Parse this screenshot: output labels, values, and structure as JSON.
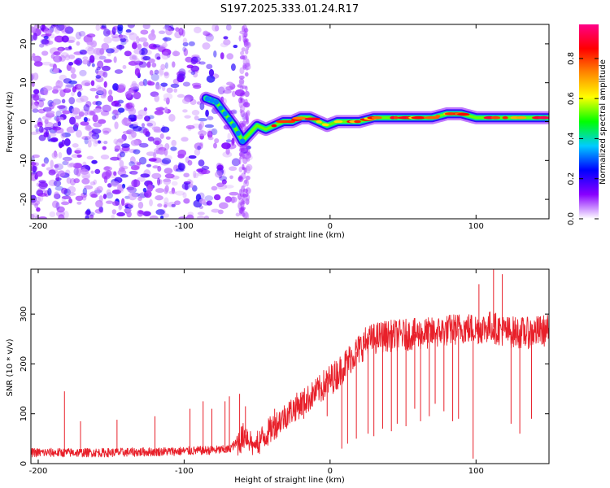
{
  "figure_title": "S197.2025.333.01.24.R17",
  "chart_data": [
    {
      "type": "heatmap",
      "title": "",
      "xlabel": "Height of straight line (km)",
      "ylabel": "Frequency (Hz)",
      "xlim": [
        -205,
        150
      ],
      "ylim": [
        -25,
        25
      ],
      "xticks": [
        -200,
        -100,
        0,
        100
      ],
      "yticks": [
        -20,
        -10,
        0,
        10,
        20
      ],
      "xtick_labels": [
        "-200",
        "-100",
        "0",
        "100"
      ],
      "ytick_labels": [
        "-20",
        "-10",
        "0",
        "10",
        "20"
      ],
      "colorbar": {
        "label": "Normalized spectral amplitude",
        "range": [
          0,
          0.97
        ],
        "ticks": [
          0.0,
          0.2,
          0.4,
          0.6,
          0.8
        ],
        "tick_labels": [
          "0.0",
          "0.2",
          "0.4",
          "0.6",
          "0.8"
        ],
        "colormap": [
          "#ffffff",
          "#8800ff",
          "#0000ff",
          "#00ccff",
          "#00ff00",
          "#ffff00",
          "#ff8800",
          "#ff0000",
          "#ff0088"
        ]
      },
      "ridge": {
        "description": "dominant frequency trace",
        "x": [
          -85,
          -78,
          -72,
          -66,
          -60,
          -55,
          -50,
          -44,
          -38,
          -32,
          -26,
          -20,
          -14,
          -8,
          -2,
          5,
          12,
          20,
          30,
          40,
          50,
          60,
          70,
          80,
          90,
          100,
          110,
          120,
          130,
          140,
          150
        ],
        "y": [
          6,
          5,
          2,
          -1,
          -5,
          -3,
          -1,
          -2,
          -1,
          0,
          0,
          1,
          1,
          0,
          -1,
          0,
          0,
          0,
          1,
          1,
          1,
          1,
          1,
          2,
          2,
          1,
          1,
          1,
          1,
          1,
          1
        ]
      }
    },
    {
      "type": "line",
      "title": "",
      "xlabel": "Height of straight line (km)",
      "ylabel": "SNR (10 * v/v)",
      "xlim": [
        -205,
        150
      ],
      "ylim": [
        0,
        390
      ],
      "xticks": [
        -200,
        -100,
        0,
        100
      ],
      "yticks": [
        0,
        100,
        200,
        300
      ],
      "xtick_labels": [
        "-200",
        "-100",
        "0",
        "100"
      ],
      "ytick_labels": [
        "0",
        "100",
        "200",
        "300"
      ],
      "series": [
        {
          "name": "SNR",
          "color": "#e8202a",
          "trend_x": [
            -205,
            -150,
            -100,
            -70,
            -62,
            -58,
            -52,
            -45,
            -35,
            -25,
            -15,
            -5,
            5,
            15,
            25,
            35,
            50,
            70,
            90,
            100,
            110,
            120,
            135,
            150
          ],
          "trend_y": [
            22,
            22,
            25,
            28,
            45,
            60,
            35,
            55,
            85,
            110,
            130,
            155,
            180,
            215,
            245,
            255,
            258,
            262,
            272,
            270,
            275,
            265,
            262,
            268
          ],
          "spikes_x": [
            -182,
            -171,
            -146,
            -120,
            -96,
            -87,
            -81,
            -72,
            -69,
            -62,
            -58,
            -38,
            -18,
            -2,
            8,
            12,
            18,
            26,
            30,
            36,
            42,
            46,
            52,
            58,
            62,
            68,
            72,
            78,
            84,
            88,
            98,
            102,
            108,
            112,
            118,
            124,
            130,
            138
          ],
          "spikes_y": [
            145,
            85,
            88,
            95,
            110,
            125,
            110,
            125,
            135,
            140,
            115,
            110,
            90,
            95,
            30,
            40,
            50,
            60,
            55,
            70,
            65,
            80,
            75,
            110,
            85,
            95,
            120,
            105,
            85,
            90,
            10,
            360,
            250,
            390,
            380,
            80,
            60,
            90
          ]
        }
      ]
    }
  ]
}
